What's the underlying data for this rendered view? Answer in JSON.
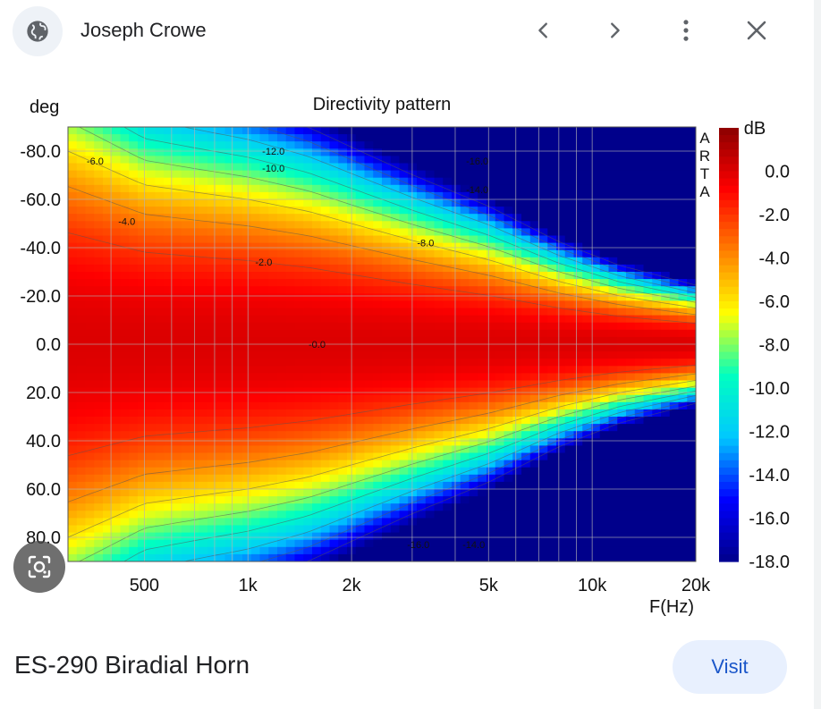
{
  "header": {
    "source_name": "Joseph Crowe",
    "icons": [
      "globe-icon",
      "chevron-left-icon",
      "chevron-right-icon",
      "more-vert-icon",
      "close-icon"
    ]
  },
  "image": {
    "caption": "ES-290 Biradial Horn",
    "visit_label": "Visit"
  },
  "chart_data": {
    "type": "heatmap",
    "title": "Directivity pattern",
    "ylabel": "deg",
    "xlabel": "F(Hz)",
    "colorbar_label": "dB",
    "watermark": "ARTA",
    "x_scale": "log",
    "xlim": [
      300,
      20000
    ],
    "ylim": [
      -90,
      90
    ],
    "x_ticks": [
      500,
      1000,
      2000,
      5000,
      10000,
      20000
    ],
    "x_tick_labels": [
      "500",
      "1k",
      "2k",
      "5k",
      "10k",
      "20k"
    ],
    "y_ticks": [
      -80,
      -60,
      -40,
      -20,
      0,
      20,
      40,
      60,
      80
    ],
    "y_tick_labels": [
      "-80.0",
      "-60.0",
      "-40.0",
      "-20.0",
      "0.0",
      "20.0",
      "40.0",
      "60.0",
      "80.0"
    ],
    "colorbar_ticks": [
      "0.0",
      "-2.0",
      "-4.0",
      "-6.0",
      "-8.0",
      "-10.0",
      "-12.0",
      "-14.0",
      "-16.0",
      "-18.0"
    ],
    "colorbar_range": [
      -18,
      2
    ],
    "colormap": [
      "#00008b",
      "#0000ff",
      "#00c8ff",
      "#00ffc0",
      "#ffff00",
      "#ff8000",
      "#ff0000",
      "#8b0000"
    ],
    "beamwidth_profile": {
      "freq_hz": [
        300,
        500,
        700,
        1000,
        1500,
        2000,
        3000,
        5000,
        8000,
        12000,
        20000
      ],
      "minus6db_half_angle_deg": [
        80,
        66,
        63,
        60,
        55,
        50,
        43,
        35,
        26,
        20,
        15
      ]
    },
    "contour_labels": [
      {
        "text": "-6.0",
        "freq": 340,
        "deg": -76
      },
      {
        "text": "-12.0",
        "freq": 1100,
        "deg": -80
      },
      {
        "text": "-10.0",
        "freq": 1100,
        "deg": -73
      },
      {
        "text": "-4.0",
        "freq": 420,
        "deg": -51
      },
      {
        "text": "-2.0",
        "freq": 1050,
        "deg": -34
      },
      {
        "text": "-8.0",
        "freq": 3100,
        "deg": -42
      },
      {
        "text": "-16.0",
        "freq": 4300,
        "deg": -76
      },
      {
        "text": "-14.0",
        "freq": 4300,
        "deg": -64
      },
      {
        "text": "-0.0",
        "freq": 1500,
        "deg": 0
      },
      {
        "text": "-16.0",
        "freq": 2900,
        "deg": 83
      },
      {
        "text": "-14.0",
        "freq": 4200,
        "deg": 83
      }
    ]
  }
}
